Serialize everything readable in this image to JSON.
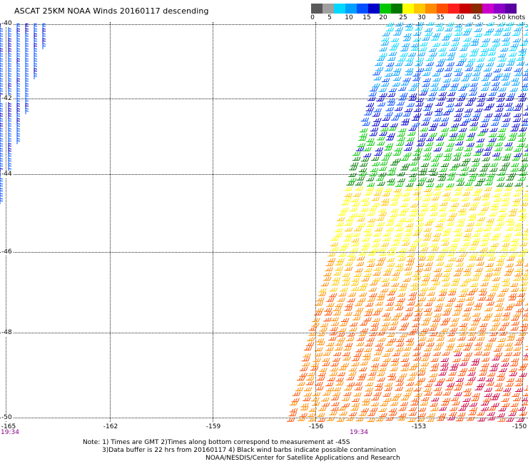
{
  "title": "ASCAT 25KM NOAA Winds 20160117 descending",
  "scale": {
    "colors": [
      "#5a5a5a",
      "#a0a0a0",
      "#00d8ff",
      "#00a0ff",
      "#0050ff",
      "#0000c8",
      "#00c800",
      "#007800",
      "#ffff00",
      "#ffc800",
      "#ff8c00",
      "#ff5000",
      "#ff1e1e",
      "#c80000",
      "#8c2800",
      "#cc00cc",
      "#8c00c8",
      "#5a00a0"
    ],
    "labels": [
      "0",
      "5",
      "10",
      "15",
      "20",
      "25",
      "30",
      "35",
      "40",
      "45",
      ">50 knots"
    ]
  },
  "axes": {
    "lat_labels": [
      "-40",
      "-42",
      "-44",
      "-46",
      "-48",
      "-50"
    ],
    "lon_labels": [
      "-165",
      "-162",
      "-159",
      "-156",
      "-153",
      "-150"
    ],
    "time_labels": [
      "19:34",
      "19:34"
    ]
  },
  "notes": {
    "line1": "Note: 1) Times are GMT 2)Times along bottom correspond to measurement at -45S",
    "line2": "3)Data buffer is 22 hrs from 20160117 4) Black wind barbs indicate possible contamination",
    "line3": "NOAA/NESDIS/Center for Satellite Applications and Research"
  }
}
